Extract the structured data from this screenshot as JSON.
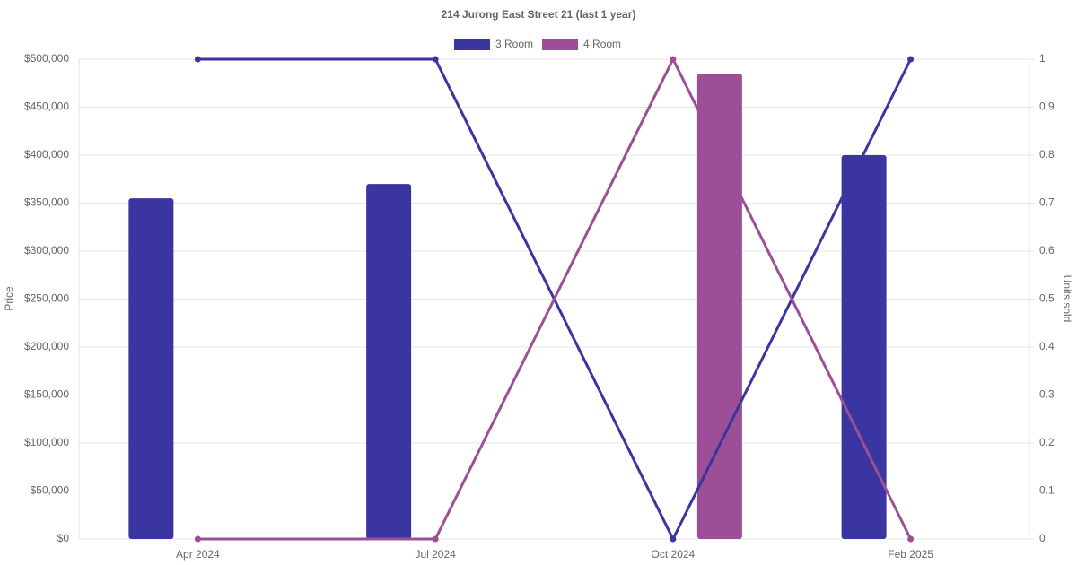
{
  "chart_data": {
    "type": "bar-line",
    "title": "214 Jurong East Street 21 (last 1 year)",
    "y_label": "Price",
    "y2_label": "Units sold",
    "categories": [
      "Apr 2024",
      "Jul 2024",
      "Oct 2024",
      "Feb 2025"
    ],
    "series": [
      {
        "name": "3 Room",
        "color": "#3a35a0",
        "values": [
          355000,
          370000,
          null,
          400000
        ],
        "units": [
          1,
          1,
          0,
          1
        ]
      },
      {
        "name": "4 Room",
        "color": "#9c4f96",
        "values": [
          null,
          null,
          485000,
          null
        ],
        "units": [
          0,
          0,
          1,
          0
        ]
      }
    ],
    "ylim": [
      0,
      500000
    ],
    "yticks": [
      {
        "value": 0,
        "label": "$0"
      },
      {
        "value": 50000,
        "label": "$50,000"
      },
      {
        "value": 100000,
        "label": "$100,000"
      },
      {
        "value": 150000,
        "label": "$150,000"
      },
      {
        "value": 200000,
        "label": "$200,000"
      },
      {
        "value": 250000,
        "label": "$250,000"
      },
      {
        "value": 300000,
        "label": "$300,000"
      },
      {
        "value": 350000,
        "label": "$350,000"
      },
      {
        "value": 400000,
        "label": "$400,000"
      },
      {
        "value": 450000,
        "label": "$450,000"
      },
      {
        "value": 500000,
        "label": "$500,000"
      }
    ],
    "y2lim": [
      0,
      1
    ],
    "y2ticks": [
      0,
      0.1,
      0.2,
      0.3,
      0.4,
      0.5,
      0.6,
      0.7,
      0.8,
      0.9,
      1
    ],
    "grid": true
  }
}
